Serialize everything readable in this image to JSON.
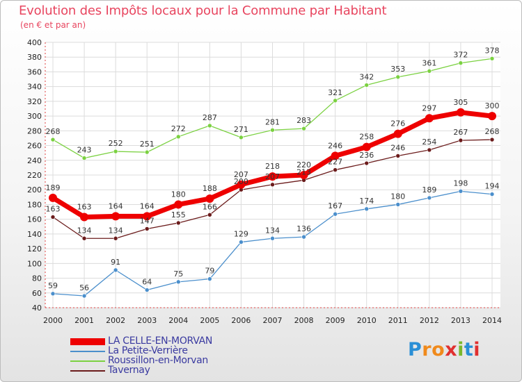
{
  "title": "Evolution des Impôts locaux pour la Commune par Habitant",
  "subtitle": "(en € et par an)",
  "logo": {
    "text": "Proxiti",
    "colors": [
      "#2a8fd6",
      "#f08a1c",
      "#f08a1c",
      "#e03030",
      "#7ab82c",
      "#2a8fd6",
      "#e03030"
    ]
  },
  "chart_data": {
    "type": "line",
    "title": "Evolution des Impôts locaux pour la Commune par Habitant",
    "ylabel": "(en € et par an)",
    "xlabel": "",
    "x": [
      2000,
      2001,
      2002,
      2003,
      2004,
      2005,
      2006,
      2007,
      2008,
      2009,
      2010,
      2011,
      2012,
      2013,
      2014
    ],
    "ylim": [
      40,
      400
    ],
    "yticks": [
      40,
      60,
      80,
      100,
      120,
      140,
      160,
      180,
      200,
      220,
      240,
      260,
      280,
      300,
      320,
      340,
      360,
      380,
      400
    ],
    "grid": true,
    "series": [
      {
        "name": "LA CELLE-EN-MORVAN",
        "color": "#ee0000",
        "thick": true,
        "values": [
          189,
          163,
          164,
          164,
          180,
          188,
          207,
          218,
          220,
          246,
          258,
          276,
          297,
          305,
          300
        ]
      },
      {
        "name": "La Petite-Verrière",
        "color": "#4b8fcc",
        "thick": false,
        "values": [
          59,
          56,
          91,
          64,
          75,
          79,
          129,
          134,
          136,
          167,
          174,
          180,
          189,
          198,
          194
        ]
      },
      {
        "name": "Roussillon-en-Morvan",
        "color": "#7bd141",
        "thick": false,
        "values": [
          268,
          243,
          252,
          251,
          272,
          287,
          271,
          281,
          283,
          321,
          342,
          353,
          361,
          372,
          378
        ]
      },
      {
        "name": "Tavernay",
        "color": "#6b1b1b",
        "thick": false,
        "values": [
          163,
          134,
          134,
          147,
          155,
          166,
          200,
          207,
          213,
          227,
          236,
          246,
          254,
          267,
          268
        ]
      }
    ]
  }
}
